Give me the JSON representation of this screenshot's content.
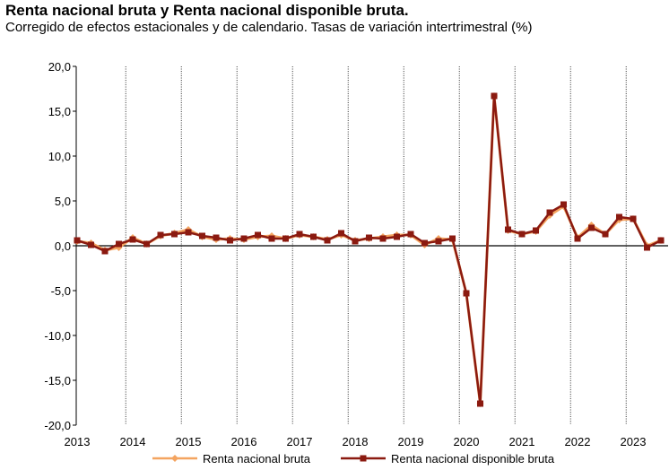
{
  "chart_data": {
    "type": "line",
    "title": "Renta nacional bruta y Renta nacional disponible bruta.",
    "subtitle": "Corregido de efectos estacionales y de calendario. Tasas de variación intertrimestral (%)",
    "xlabel": "",
    "ylabel": "",
    "ylim": [
      -20,
      20
    ],
    "yticks": [
      "20,0",
      "15,0",
      "10,0",
      "5,0",
      "0,0",
      "-5,0",
      "-10,0",
      "-15,0",
      "-20,0"
    ],
    "ytick_values": [
      20,
      15,
      10,
      5,
      0,
      -5,
      -10,
      -15,
      -20
    ],
    "xticks": [
      "2013",
      "2014",
      "2015",
      "2016",
      "2017",
      "2018",
      "2019",
      "2020",
      "2021",
      "2022",
      "2023"
    ],
    "x": [
      "2013T1",
      "2013T2",
      "2013T3",
      "2013T4",
      "2014T1",
      "2014T2",
      "2014T3",
      "2014T4",
      "2015T1",
      "2015T2",
      "2015T3",
      "2015T4",
      "2016T1",
      "2016T2",
      "2016T3",
      "2016T4",
      "2017T1",
      "2017T2",
      "2017T3",
      "2017T4",
      "2018T1",
      "2018T2",
      "2018T3",
      "2018T4",
      "2019T1",
      "2019T2",
      "2019T3",
      "2019T4",
      "2020T1",
      "2020T2",
      "2020T3",
      "2020T4",
      "2021T1",
      "2021T2",
      "2021T3",
      "2021T4",
      "2022T1",
      "2022T2",
      "2022T3",
      "2022T4",
      "2023T1",
      "2023T2",
      "2023T3"
    ],
    "legend_position": "bottom",
    "series": [
      {
        "name": "Renta nacional bruta",
        "color": "#f4a460",
        "marker": "diamond",
        "values": [
          0.5,
          0.3,
          -0.5,
          -0.2,
          0.9,
          0.2,
          1.1,
          1.4,
          1.8,
          1.0,
          0.7,
          0.8,
          0.7,
          1.0,
          1.1,
          0.8,
          1.2,
          1.0,
          0.7,
          1.2,
          0.6,
          0.8,
          1.0,
          1.2,
          1.2,
          0.1,
          0.8,
          0.7,
          -5.3,
          -17.6,
          16.7,
          1.7,
          1.3,
          1.6,
          3.4,
          4.4,
          0.9,
          2.3,
          1.3,
          2.9,
          3.0,
          0.0,
          0.6
        ]
      },
      {
        "name": "Renta nacional disponible bruta",
        "color": "#8b1a10",
        "marker": "square",
        "values": [
          0.6,
          0.1,
          -0.6,
          0.2,
          0.7,
          0.2,
          1.2,
          1.3,
          1.5,
          1.1,
          0.9,
          0.6,
          0.8,
          1.2,
          0.8,
          0.8,
          1.3,
          1.0,
          0.6,
          1.4,
          0.5,
          0.9,
          0.8,
          1.0,
          1.3,
          0.3,
          0.5,
          0.8,
          -5.3,
          -17.6,
          16.7,
          1.8,
          1.3,
          1.7,
          3.7,
          4.6,
          0.8,
          2.0,
          1.3,
          3.2,
          3.0,
          -0.2,
          0.6
        ]
      }
    ]
  }
}
